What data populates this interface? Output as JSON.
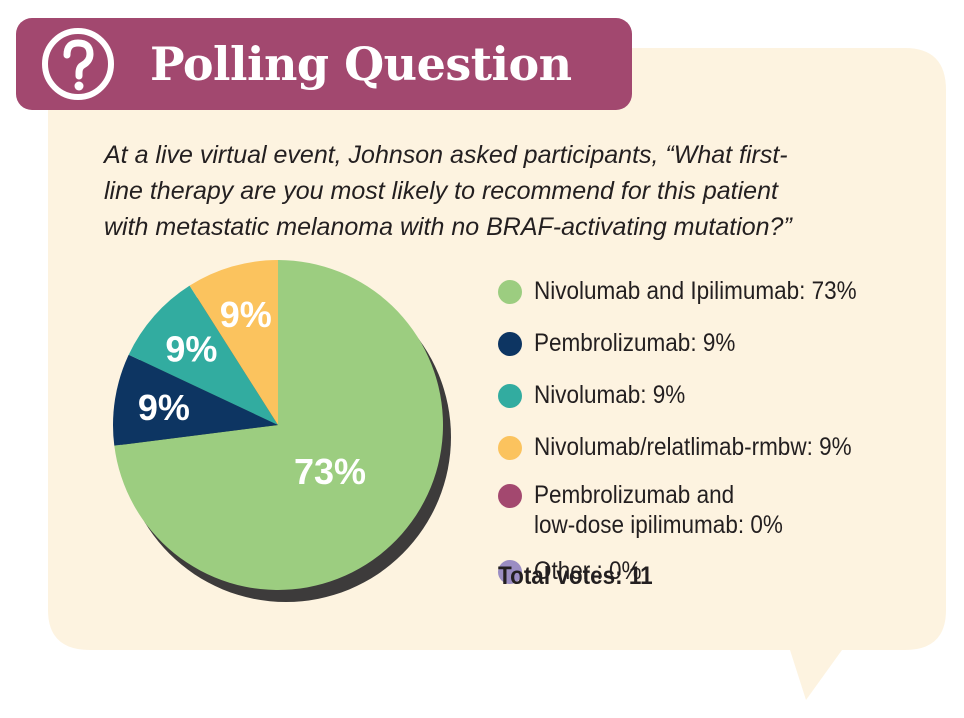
{
  "header": {
    "icon": "question-mark-icon",
    "title": "Polling Question"
  },
  "question_lines": [
    "At a live virtual event, Johnson asked participants, “What first-",
    "line therapy are you most likely to recommend for this patient",
    "with metastatic melanoma with no BRAF-activating mutation?”"
  ],
  "colors": {
    "title_bar": "#a2486f",
    "background": "#fdf3e0",
    "shadow": "#3d3b3b"
  },
  "chart_data": {
    "type": "pie",
    "slices": [
      {
        "label": "Nivolumab and Ipilimumab",
        "value": 73,
        "display": "73%",
        "color": "#9ccd80"
      },
      {
        "label": "Pembrolizumab",
        "value": 9,
        "display": "9%",
        "color": "#0d3562"
      },
      {
        "label": "Nivolumab",
        "value": 9,
        "display": "9%",
        "color": "#32aca0"
      },
      {
        "label": "Nivolumab/relatlimab-rmbw",
        "value": 9,
        "display": "9%",
        "color": "#fbc35e"
      },
      {
        "label": "Pembrolizumab and low-dose ipilimumab",
        "value": 0,
        "display": "0%",
        "color": "#a3486f"
      },
      {
        "label": "Other",
        "value": 0,
        "display": "0%",
        "color": "#9b8dc3"
      }
    ],
    "legend": [
      {
        "lines": [
          "Nivolumab and Ipilimumab: 73%"
        ],
        "color": "#9ccd80"
      },
      {
        "lines": [
          "Pembrolizumab: 9%"
        ],
        "color": "#0d3562"
      },
      {
        "lines": [
          "Nivolumab: 9%"
        ],
        "color": "#32aca0"
      },
      {
        "lines": [
          "Nivolumab/relatlimab-rmbw: 9%"
        ],
        "color": "#fbc35e"
      },
      {
        "lines": [
          "Pembrolizumab and",
          "low-dose ipilimumab: 0%"
        ],
        "color": "#a3486f"
      },
      {
        "lines": [
          "Other : 0%"
        ],
        "color": "#9b8dc3"
      }
    ],
    "legend_placement": "right",
    "total_votes": "Total votes: 11"
  }
}
